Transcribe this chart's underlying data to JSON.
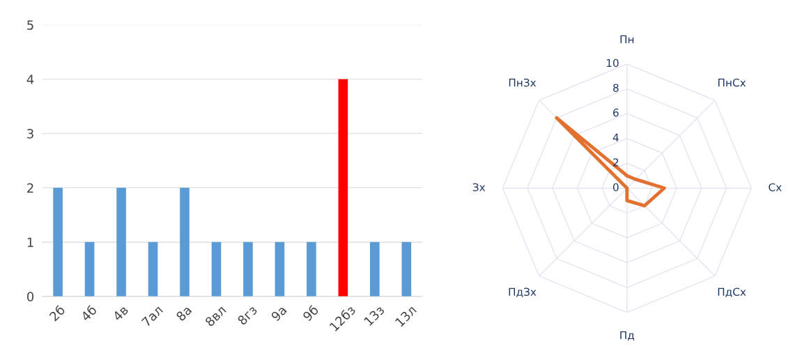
{
  "chart_data": [
    {
      "type": "bar",
      "categories": [
        "2б",
        "4б",
        "4в",
        "7ал",
        "8а",
        "8вл",
        "8гз",
        "9а",
        "9б",
        "12бз",
        "13з",
        "13л"
      ],
      "values": [
        2,
        1,
        2,
        1,
        2,
        1,
        1,
        1,
        1,
        4,
        1,
        1
      ],
      "colors": [
        "#5b9bd5",
        "#5b9bd5",
        "#5b9bd5",
        "#5b9bd5",
        "#5b9bd5",
        "#5b9bd5",
        "#5b9bd5",
        "#5b9bd5",
        "#5b9bd5",
        "#ff0000",
        "#5b9bd5",
        "#5b9bd5"
      ],
      "ylim": [
        0,
        5
      ],
      "yticks": [
        0,
        1,
        2,
        3,
        4,
        5
      ],
      "grid": "y"
    },
    {
      "type": "radar",
      "categories": [
        "Пн",
        "ПнСх",
        "Сх",
        "ПдСх",
        "Пд",
        "ПдЗх",
        "Зх",
        "ПнЗх"
      ],
      "series": [
        {
          "color": "#e2702f",
          "values": [
            1,
            1,
            3,
            2,
            1,
            0,
            0,
            8
          ]
        }
      ],
      "ylim": [
        0,
        10
      ],
      "yticks": [
        0,
        2,
        4,
        6,
        8,
        10
      ],
      "grid": true
    }
  ]
}
